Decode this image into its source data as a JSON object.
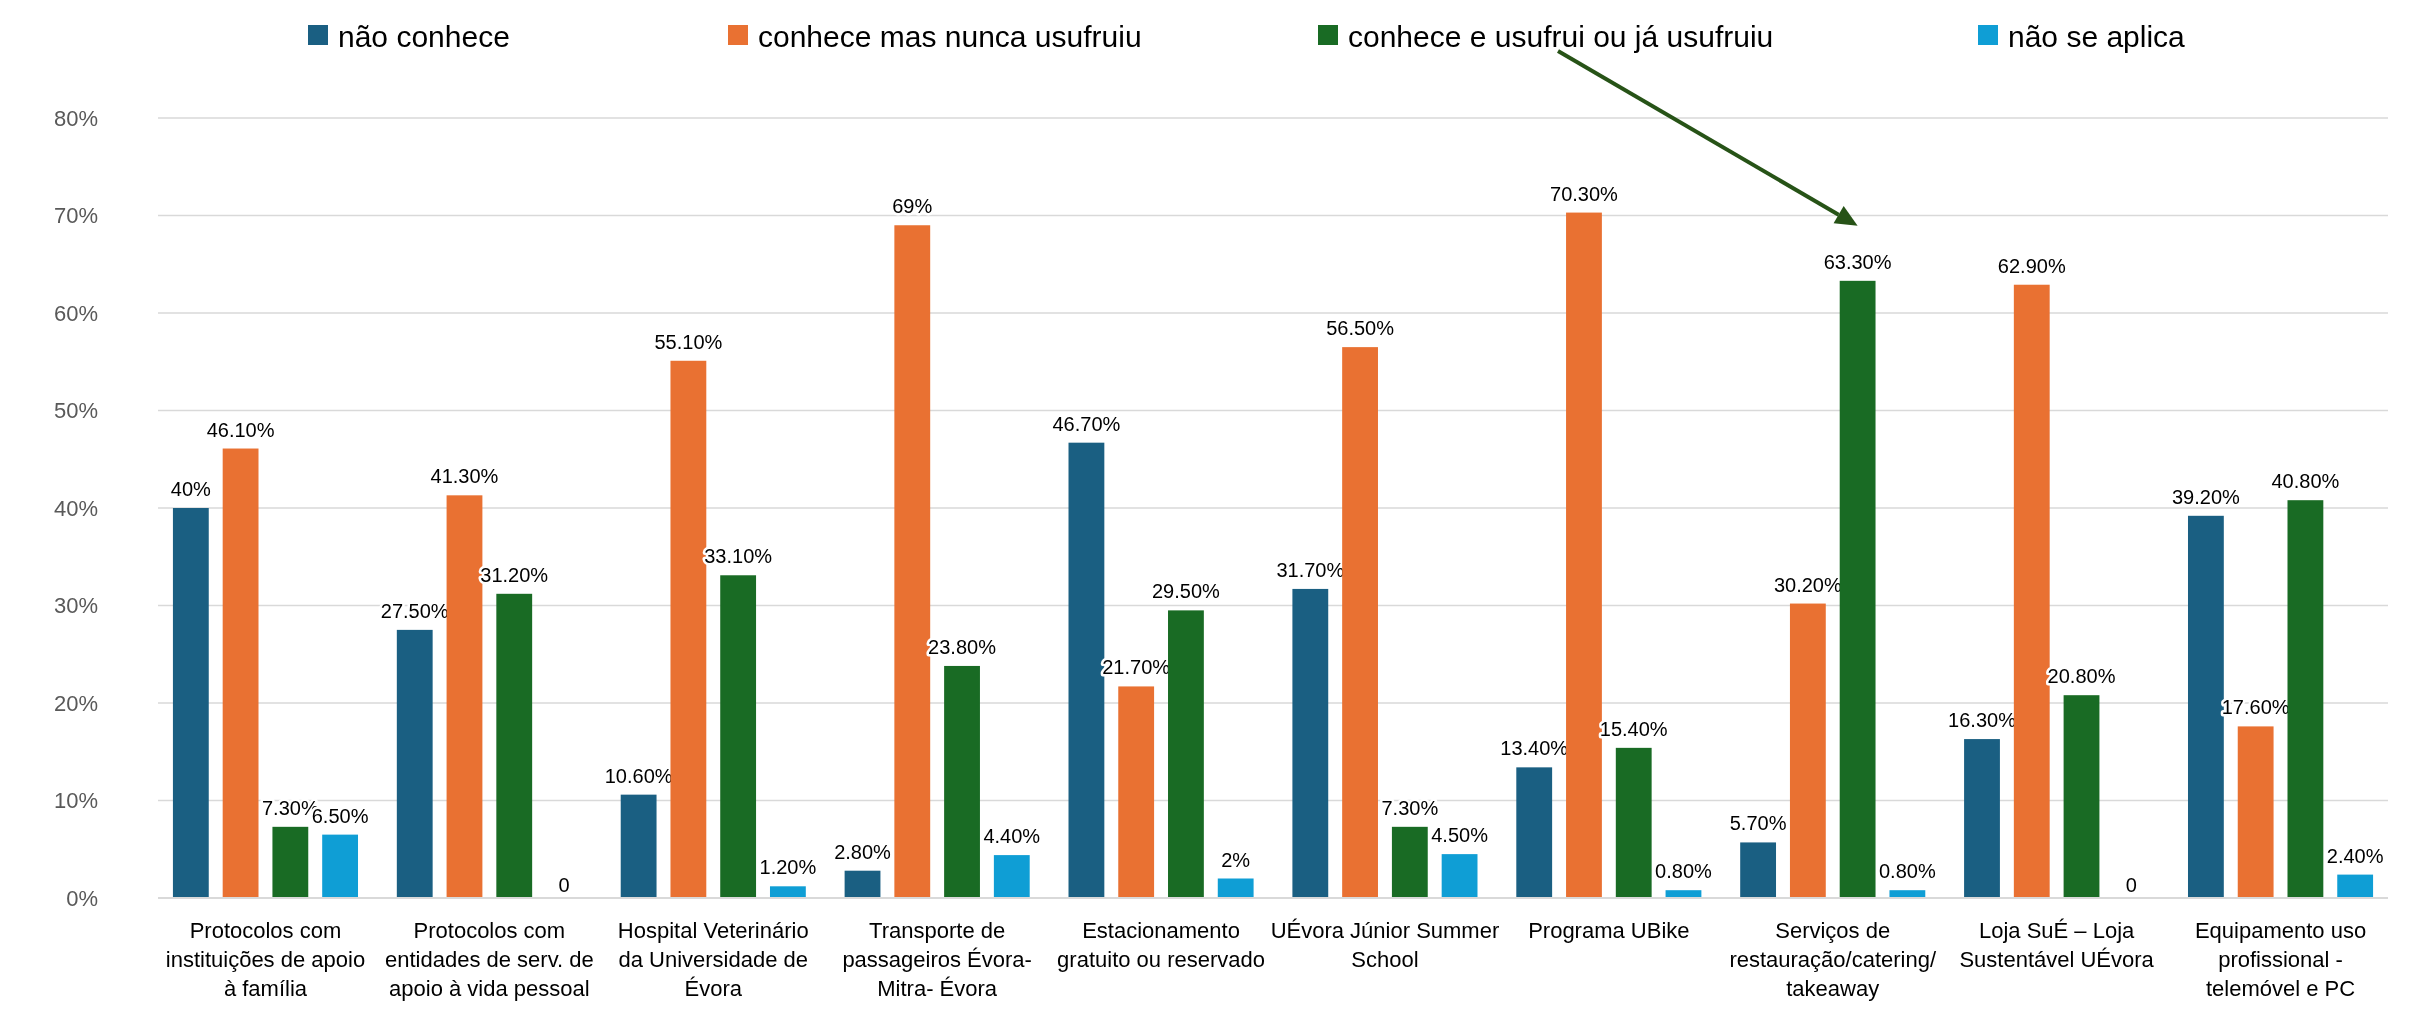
{
  "chart_data": {
    "type": "bar",
    "categories": [
      "Protocolos com instituições de apoio à família",
      "Protocolos com entidades de serv. de apoio à vida pessoal",
      "Hospital Veterinário da Universidade de Évora",
      "Transporte de passageiros Évora- Mitra- Évora",
      "Estacionamento gratuito ou reservado",
      "UÉvora Júnior Summer School",
      "Programa UBike",
      "Serviços de restauração/catering/ takeaway",
      "Loja SuÉ – Loja Sustentável UÉvora",
      "Equipamento uso profissional - telemóvel e PC"
    ],
    "series": [
      {
        "name": "não conhece",
        "color": "#1a5f82",
        "values": [
          40,
          27.5,
          10.6,
          2.8,
          46.7,
          31.7,
          13.4,
          5.7,
          16.3,
          39.2
        ],
        "value_labels": [
          "40%",
          "27.50%",
          "10.60%",
          "2.80%",
          "46.70%",
          "31.70%",
          "13.40%",
          "5.70%",
          "16.30%",
          "39.20%"
        ]
      },
      {
        "name": "conhece mas nunca usufruiu",
        "color": "#e97132",
        "values": [
          46.1,
          41.3,
          55.1,
          69,
          21.7,
          56.5,
          70.3,
          30.2,
          62.9,
          17.6
        ],
        "value_labels": [
          "46.10%",
          "41.30%",
          "55.10%",
          "69%",
          "21.70%",
          "56.50%",
          "70.30%",
          "30.20%",
          "62.90%",
          "17.60%"
        ]
      },
      {
        "name": "conhece e usufrui ou já usufruiu",
        "color": "#196b24",
        "values": [
          7.3,
          31.2,
          33.1,
          23.8,
          29.5,
          7.3,
          15.4,
          63.3,
          20.8,
          40.8
        ],
        "value_labels": [
          "7.30%",
          "31.20%",
          "33.10%",
          "23.80%",
          "29.50%",
          "7.30%",
          "15.40%",
          "63.30%",
          "20.80%",
          "40.80%"
        ]
      },
      {
        "name": "não se aplica",
        "color": "#0f9ed5",
        "values": [
          6.5,
          0,
          1.2,
          4.4,
          2,
          4.5,
          0.8,
          0.8,
          0,
          2.4
        ],
        "value_labels": [
          "6.50%",
          "0",
          "1.20%",
          "4.40%",
          "2%",
          "4.50%",
          "0.80%",
          "0.80%",
          "0",
          "2.40%"
        ]
      }
    ],
    "ylim": [
      0,
      80
    ],
    "yticks": [
      {
        "value": 0,
        "label": "0%"
      },
      {
        "value": 10,
        "label": "10%"
      },
      {
        "value": 20,
        "label": "20%"
      },
      {
        "value": 30,
        "label": "30%"
      },
      {
        "value": 40,
        "label": "40%"
      },
      {
        "value": 50,
        "label": "50%"
      },
      {
        "value": 60,
        "label": "60%"
      },
      {
        "value": 70,
        "label": "70%"
      },
      {
        "value": 80,
        "label": "80%"
      }
    ],
    "grid": "y",
    "legend": "top"
  }
}
